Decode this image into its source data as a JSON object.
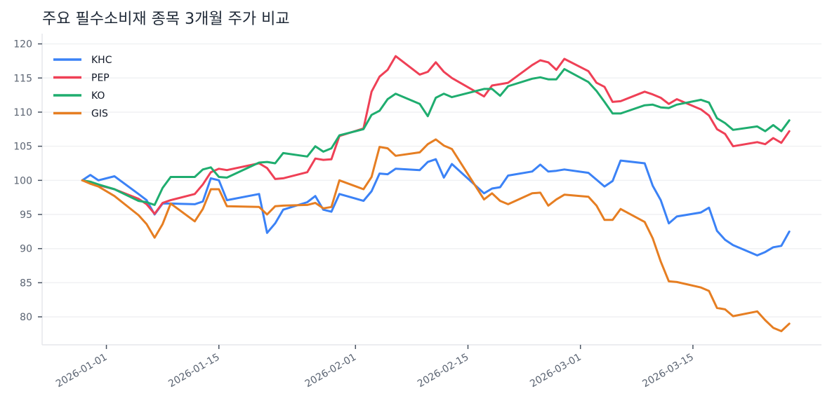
{
  "chart_data": {
    "type": "line",
    "title": "주요 필수소비재 종목 3개월 주가 비교",
    "xlabel": "",
    "ylabel": "",
    "ylim": [
      75.9,
      121.5
    ],
    "xlim": [
      "2025-12-24",
      "2026-03-31"
    ],
    "grid": "horizontal",
    "legend_position": "top-left",
    "yticks": [
      80,
      85,
      90,
      95,
      100,
      105,
      110,
      115,
      120
    ],
    "xticks": [
      "2026-01-01",
      "2026-01-15",
      "2026-02-01",
      "2026-02-15",
      "2026-03-01",
      "2026-03-15"
    ],
    "x": [
      "2025-12-29",
      "2025-12-30",
      "2025-12-31",
      "2026-01-02",
      "2026-01-05",
      "2026-01-06",
      "2026-01-07",
      "2026-01-08",
      "2026-01-09",
      "2026-01-12",
      "2026-01-13",
      "2026-01-14",
      "2026-01-15",
      "2026-01-16",
      "2026-01-20",
      "2026-01-21",
      "2026-01-22",
      "2026-01-23",
      "2026-01-26",
      "2026-01-27",
      "2026-01-28",
      "2026-01-29",
      "2026-01-30",
      "2026-02-02",
      "2026-02-03",
      "2026-02-04",
      "2026-02-05",
      "2026-02-06",
      "2026-02-09",
      "2026-02-10",
      "2026-02-11",
      "2026-02-12",
      "2026-02-13",
      "2026-02-17",
      "2026-02-18",
      "2026-02-19",
      "2026-02-20",
      "2026-02-23",
      "2026-02-24",
      "2026-02-25",
      "2026-02-26",
      "2026-02-27",
      "2026-03-02",
      "2026-03-03",
      "2026-03-04",
      "2026-03-05",
      "2026-03-06",
      "2026-03-09",
      "2026-03-10",
      "2026-03-11",
      "2026-03-12",
      "2026-03-13",
      "2026-03-16",
      "2026-03-17",
      "2026-03-18",
      "2026-03-19",
      "2026-03-20",
      "2026-03-23",
      "2026-03-24",
      "2026-03-25",
      "2026-03-26",
      "2026-03-27"
    ],
    "series": [
      {
        "name": "KHC",
        "color": "#3b82f6",
        "values": [
          100,
          100.8,
          100.0,
          100.6,
          98.0,
          97.1,
          95.0,
          96.6,
          96.6,
          96.5,
          96.9,
          100.3,
          100.0,
          97.1,
          98.0,
          92.3,
          93.7,
          95.7,
          96.8,
          97.7,
          95.7,
          95.4,
          98.0,
          97.0,
          98.4,
          101.0,
          100.9,
          101.7,
          101.5,
          102.7,
          103.1,
          100.4,
          102.4,
          98.1,
          98.8,
          99.0,
          100.7,
          101.3,
          102.3,
          101.3,
          101.4,
          101.6,
          101.1,
          100.1,
          99.1,
          99.9,
          102.9,
          102.5,
          99.2,
          97.1,
          93.7,
          94.7,
          95.3,
          96.0,
          92.6,
          91.3,
          90.5,
          89.0,
          89.5,
          90.2,
          90.4,
          92.5
        ]
      },
      {
        "name": "PEP",
        "color": "#ef4056",
        "values": [
          100,
          99.7,
          99.3,
          98.7,
          97.3,
          96.5,
          95.1,
          96.7,
          97.1,
          98.0,
          99.4,
          101.2,
          101.7,
          101.5,
          102.5,
          101.8,
          100.2,
          100.3,
          101.2,
          103.2,
          103.0,
          103.1,
          106.5,
          107.6,
          113.0,
          115.2,
          116.2,
          118.2,
          115.5,
          115.9,
          117.3,
          115.9,
          115.0,
          112.3,
          113.9,
          114.1,
          114.3,
          116.9,
          117.6,
          117.3,
          116.2,
          117.8,
          116.0,
          114.3,
          113.7,
          111.5,
          111.6,
          113.0,
          112.6,
          112.1,
          111.2,
          111.9,
          110.4,
          109.5,
          107.5,
          106.8,
          105.0,
          105.6,
          105.3,
          106.2,
          105.5,
          107.2
        ]
      },
      {
        "name": "KO",
        "color": "#1fad6f",
        "values": [
          100,
          99.8,
          99.4,
          98.7,
          97.0,
          96.8,
          96.4,
          98.9,
          100.5,
          100.5,
          101.6,
          101.9,
          100.5,
          100.4,
          102.6,
          102.7,
          102.5,
          104.0,
          103.5,
          105.0,
          104.2,
          104.7,
          106.6,
          107.5,
          109.6,
          110.2,
          111.9,
          112.7,
          111.2,
          109.4,
          112.1,
          112.7,
          112.2,
          113.4,
          113.4,
          112.4,
          113.8,
          114.9,
          115.1,
          114.8,
          114.8,
          116.3,
          114.4,
          113.1,
          111.5,
          109.8,
          109.8,
          111.0,
          111.1,
          110.7,
          110.6,
          111.1,
          111.8,
          111.4,
          109.1,
          108.4,
          107.4,
          107.9,
          107.2,
          108.1,
          107.2,
          108.8
        ]
      },
      {
        "name": "GIS",
        "color": "#e67e22",
        "values": [
          100,
          99.5,
          99.1,
          97.7,
          94.9,
          93.6,
          91.6,
          93.6,
          96.6,
          94.0,
          95.8,
          98.7,
          98.7,
          96.2,
          96.1,
          95.0,
          96.2,
          96.3,
          96.4,
          96.7,
          95.9,
          96.1,
          100.0,
          98.7,
          100.5,
          104.9,
          104.7,
          103.6,
          104.1,
          105.3,
          106.0,
          105.1,
          104.6,
          97.2,
          98.1,
          97.0,
          96.5,
          98.1,
          98.2,
          96.3,
          97.2,
          97.9,
          97.6,
          96.3,
          94.2,
          94.2,
          95.8,
          93.9,
          91.5,
          88.1,
          85.2,
          85.1,
          84.3,
          83.8,
          81.3,
          81.1,
          80.1,
          80.8,
          79.5,
          78.4,
          77.9,
          79.0
        ]
      }
    ]
  }
}
